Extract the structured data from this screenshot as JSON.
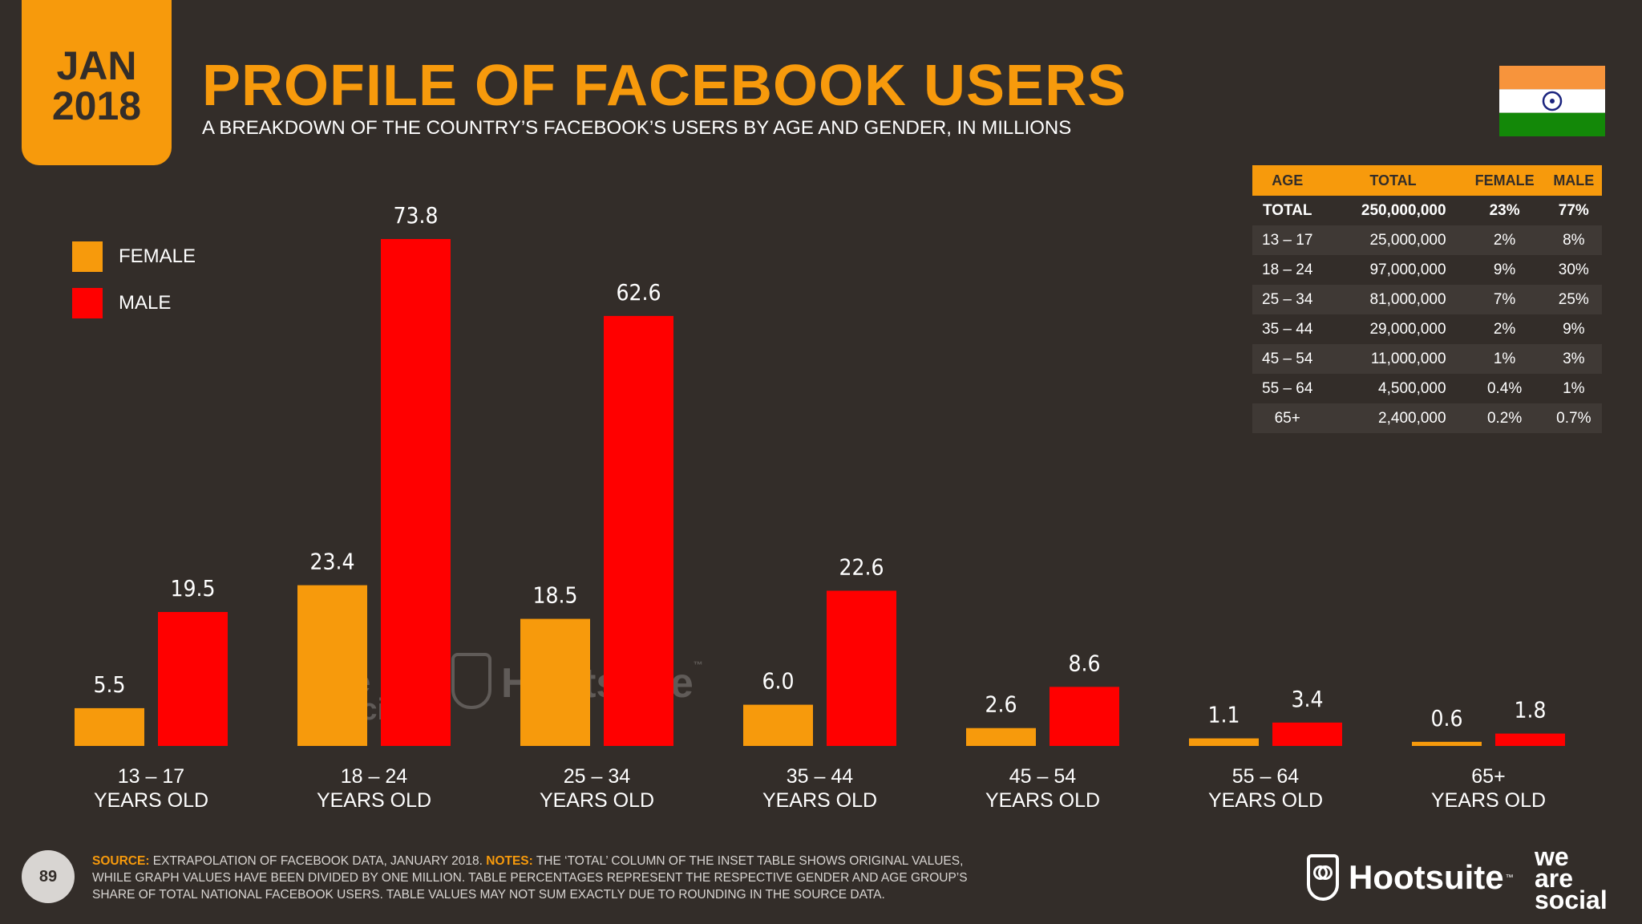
{
  "header": {
    "month": "JAN",
    "year": "2018",
    "title": "PROFILE OF FACEBOOK USERS",
    "subtitle": "A BREAKDOWN OF THE COUNTRY’S FACEBOOK’S USERS BY AGE AND GENDER, IN MILLIONS"
  },
  "colors": {
    "background": "#332d29",
    "accent": "#f79a0c",
    "female": "#f79a0c",
    "male": "#ff0000",
    "flag_saffron": "#f7943c",
    "flag_green": "#138808",
    "flag_chakra": "#1a237e"
  },
  "flag": {
    "country": "India",
    "icon": "india-flag-icon"
  },
  "legend": [
    {
      "label": "FEMALE",
      "color": "#f79a0c"
    },
    {
      "label": "MALE",
      "color": "#ff0000"
    }
  ],
  "chart_data": {
    "type": "bar",
    "categories": [
      "13 – 17",
      "18 – 24",
      "25 – 34",
      "35 – 44",
      "45 – 54",
      "55 – 64",
      "65+"
    ],
    "category_sublabel": "YEARS OLD",
    "series": [
      {
        "name": "FEMALE",
        "color": "#f79a0c",
        "values": [
          5.5,
          23.4,
          18.5,
          6.0,
          2.6,
          1.1,
          0.6
        ],
        "labels": [
          "5.5",
          "23.4",
          "18.5",
          "6.0",
          "2.6",
          "1.1",
          "0.6"
        ]
      },
      {
        "name": "MALE",
        "color": "#ff0000",
        "values": [
          19.5,
          73.8,
          62.6,
          22.6,
          8.6,
          3.4,
          1.8
        ],
        "labels": [
          "19.5",
          "73.8",
          "62.6",
          "22.6",
          "8.6",
          "3.4",
          "1.8"
        ]
      }
    ],
    "ylim": [
      0,
      73.8
    ],
    "grid": false,
    "legend_position": "top-left"
  },
  "table": {
    "headers": [
      "AGE",
      "TOTAL",
      "FEMALE",
      "MALE"
    ],
    "rows": [
      [
        "TOTAL",
        "250,000,000",
        "23%",
        "77%"
      ],
      [
        "13 – 17",
        "25,000,000",
        "2%",
        "8%"
      ],
      [
        "18 – 24",
        "97,000,000",
        "9%",
        "30%"
      ],
      [
        "25 – 34",
        "81,000,000",
        "7%",
        "25%"
      ],
      [
        "35 – 44",
        "29,000,000",
        "2%",
        "9%"
      ],
      [
        "45 – 54",
        "11,000,000",
        "1%",
        "3%"
      ],
      [
        "55 – 64",
        "4,500,000",
        "0.4%",
        "1%"
      ],
      [
        "65+",
        "2,400,000",
        "0.2%",
        "0.7%"
      ]
    ]
  },
  "watermark": {
    "social": [
      "we",
      "are",
      "social"
    ],
    "hootsuite": "Hootsuite",
    "tm": "™"
  },
  "footer": {
    "page_number": "89",
    "source_label": "SOURCE:",
    "source_text": " EXTRAPOLATION OF FACEBOOK DATA, JANUARY 2018. ",
    "notes_label": "NOTES:",
    "notes_text": " THE ‘TOTAL’ COLUMN OF THE INSET TABLE SHOWS ORIGINAL VALUES, WHILE GRAPH VALUES HAVE BEEN DIVIDED BY ONE MILLION. TABLE PERCENTAGES REPRESENT THE RESPECTIVE GENDER AND AGE GROUP’S SHARE OF TOTAL NATIONAL FACEBOOK USERS. TABLE VALUES MAY NOT SUM EXACTLY DUE TO ROUNDING IN THE SOURCE DATA."
  },
  "branding": {
    "hootsuite": "Hootsuite",
    "tm": "™",
    "we_are_social": [
      "we",
      "are",
      "social"
    ],
    "hootsuite_icon": "hootsuite-owl-icon"
  }
}
